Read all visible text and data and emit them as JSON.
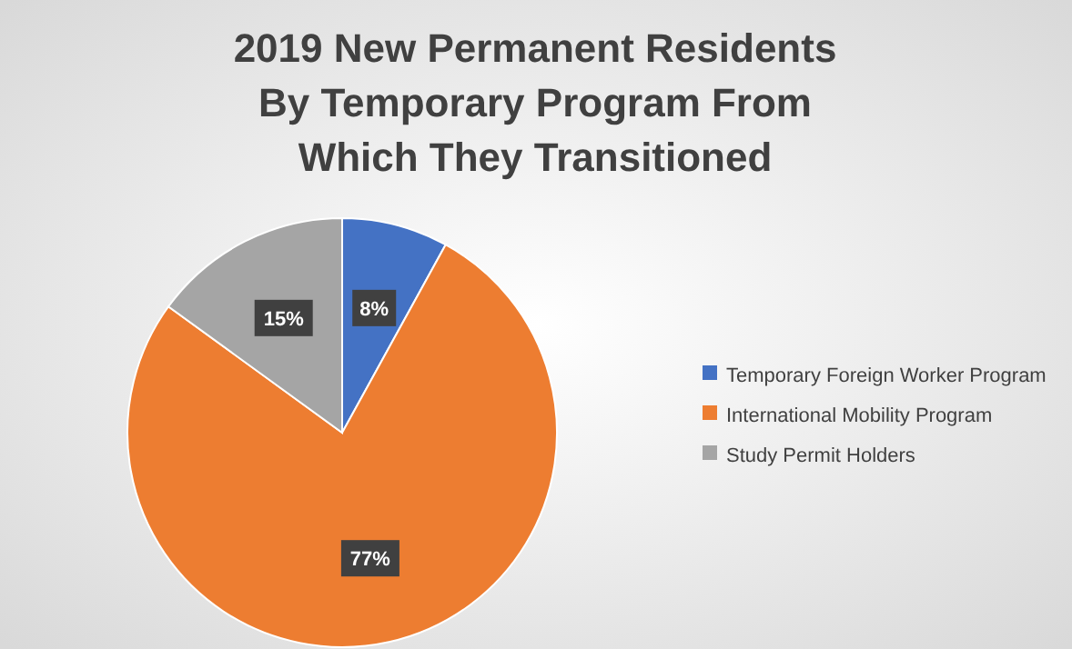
{
  "chart_data": {
    "type": "pie",
    "title": "2019 New Permanent Residents By Temporary Program From Which They Transitioned",
    "categories": [
      "Temporary Foreign Worker Program",
      "International Mobility Program",
      "Study Permit Holders"
    ],
    "values": [
      8,
      77,
      15
    ],
    "colors": [
      "#4472c4",
      "#ed7d31",
      "#a5a5a5"
    ],
    "value_labels": [
      "8%",
      "77%",
      "15%"
    ],
    "legend": "right"
  }
}
